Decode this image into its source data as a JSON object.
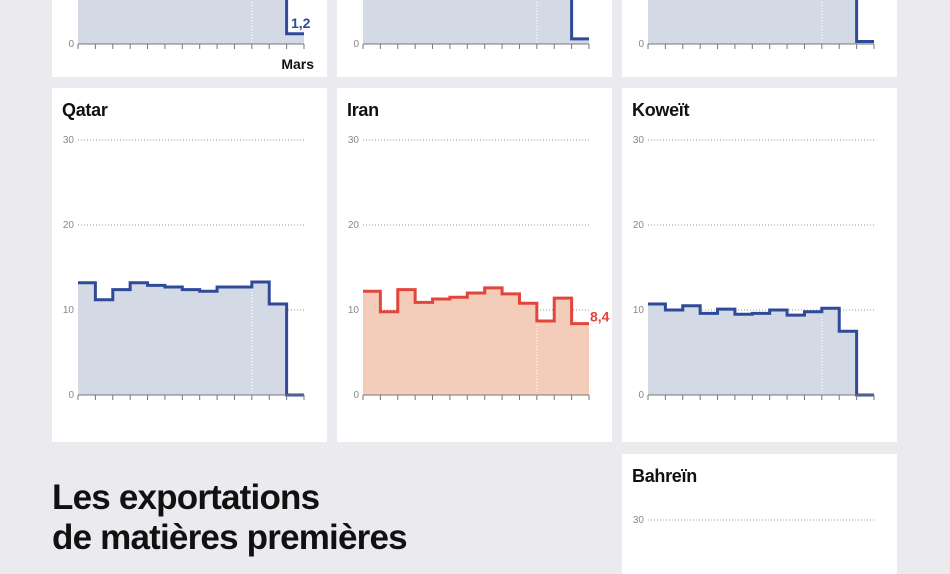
{
  "colors": {
    "blue_line": "#2f4a98",
    "blue_fill": "#d3d9e5",
    "red_line": "#e2453b",
    "red_fill": "#f3cdb9",
    "background": "#ebebef"
  },
  "headline": {
    "line1": "Les exportations",
    "line2": "de matières premières"
  },
  "chart_data": [
    {
      "type": "line",
      "step": true,
      "title": "",
      "ylim": [
        0,
        null
      ],
      "y_ticks": [
        "0"
      ],
      "x_last_label": "Mars",
      "visible_last_value": 1.2,
      "last_value_label": "1,2",
      "color": "blue"
    },
    {
      "type": "line",
      "step": true,
      "title": "",
      "ylim": [
        0,
        null
      ],
      "y_ticks": [
        "0"
      ],
      "visible_last_value": 0.6,
      "color": "blue"
    },
    {
      "type": "line",
      "step": true,
      "title": "",
      "ylim": [
        0,
        null
      ],
      "y_ticks": [
        "0"
      ],
      "visible_last_value": 0.3,
      "color": "blue"
    },
    {
      "type": "line",
      "step": true,
      "title": "Qatar",
      "ylim": [
        0,
        30
      ],
      "y_ticks": [
        "0",
        "10",
        "20",
        "30"
      ],
      "color": "blue",
      "grid": true,
      "values": [
        13.2,
        11.2,
        12.4,
        13.2,
        12.9,
        12.7,
        12.4,
        12.2,
        12.7,
        12.7,
        13.3,
        10.7,
        0
      ]
    },
    {
      "type": "line",
      "step": true,
      "title": "Iran",
      "ylim": [
        0,
        30
      ],
      "y_ticks": [
        "0",
        "10",
        "20",
        "30"
      ],
      "color": "red",
      "grid": true,
      "last_value_label": "8,4",
      "values": [
        12.2,
        9.8,
        12.4,
        10.9,
        11.3,
        11.5,
        12.0,
        12.6,
        11.9,
        10.8,
        8.7,
        11.4,
        8.4
      ]
    },
    {
      "type": "line",
      "step": true,
      "title": "Koweït",
      "ylim": [
        0,
        30
      ],
      "y_ticks": [
        "0",
        "10",
        "20",
        "30"
      ],
      "color": "blue",
      "grid": true,
      "values": [
        10.7,
        10.0,
        10.5,
        9.6,
        10.1,
        9.5,
        9.6,
        10.0,
        9.4,
        9.8,
        10.2,
        7.5,
        0
      ]
    },
    {
      "type": "line",
      "step": true,
      "title": "Bahreïn",
      "ylim": [
        0,
        30
      ],
      "y_ticks": [
        "30"
      ],
      "color": "blue",
      "grid": true
    }
  ]
}
